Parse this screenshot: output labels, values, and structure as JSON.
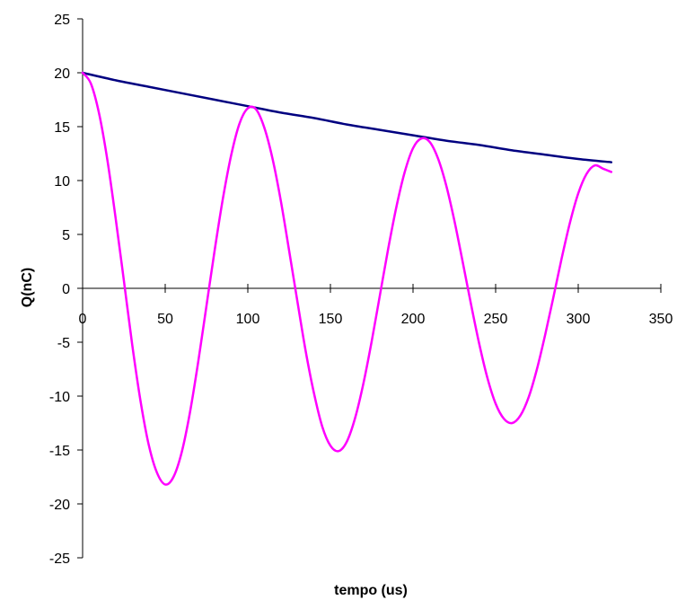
{
  "chart_data": {
    "type": "line",
    "title": "",
    "xlabel": "tempo (us)",
    "ylabel": "Q(nC)",
    "xlim": [
      0,
      350
    ],
    "ylim": [
      -25,
      25
    ],
    "x_ticks": [
      0,
      50,
      100,
      150,
      200,
      250,
      300,
      350
    ],
    "y_ticks": [
      25,
      20,
      15,
      10,
      5,
      0,
      -5,
      -10,
      -15,
      -20,
      -25
    ],
    "grid": false,
    "legend": "none",
    "series": [
      {
        "color": "#000080",
        "x": [
          0,
          20,
          40,
          60,
          80,
          100,
          120,
          140,
          160,
          180,
          200,
          220,
          240,
          260,
          280,
          300,
          320
        ],
        "y": [
          20.0,
          19.3,
          18.7,
          18.1,
          17.5,
          16.9,
          16.3,
          15.8,
          15.2,
          14.7,
          14.2,
          13.7,
          13.3,
          12.8,
          12.4,
          12.0,
          11.7
        ]
      },
      {
        "color": "#FF00FF",
        "x": [
          0,
          5,
          10,
          15,
          20,
          25,
          30,
          35,
          40,
          45,
          50,
          55,
          60,
          65,
          70,
          75,
          80,
          85,
          90,
          95,
          100,
          105,
          110,
          115,
          120,
          125,
          130,
          135,
          140,
          145,
          150,
          155,
          160,
          165,
          170,
          175,
          180,
          185,
          190,
          195,
          200,
          205,
          210,
          215,
          220,
          225,
          230,
          235,
          240,
          245,
          250,
          255,
          260,
          265,
          270,
          275,
          280,
          285,
          290,
          295,
          300,
          305,
          310,
          315,
          320
        ],
        "y": [
          20.0,
          19.0,
          16.2,
          11.9,
          6.5,
          0.7,
          -5.2,
          -10.4,
          -14.5,
          -17.1,
          -18.2,
          -17.5,
          -15.2,
          -11.5,
          -6.8,
          -1.6,
          3.6,
          8.4,
          12.4,
          15.3,
          16.7,
          16.6,
          14.9,
          12.0,
          8.1,
          3.5,
          -1.2,
          -5.8,
          -9.7,
          -12.8,
          -14.6,
          -15.1,
          -14.2,
          -12.0,
          -8.8,
          -4.9,
          -0.6,
          3.7,
          7.6,
          10.8,
          13.0,
          13.9,
          13.6,
          12.1,
          9.6,
          6.3,
          2.5,
          -1.4,
          -5.1,
          -8.3,
          -10.7,
          -12.1,
          -12.5,
          -11.8,
          -10.1,
          -7.5,
          -4.3,
          -0.8,
          2.8,
          6.1,
          8.8,
          10.6,
          11.4,
          11.1,
          10.8
        ]
      }
    ]
  }
}
